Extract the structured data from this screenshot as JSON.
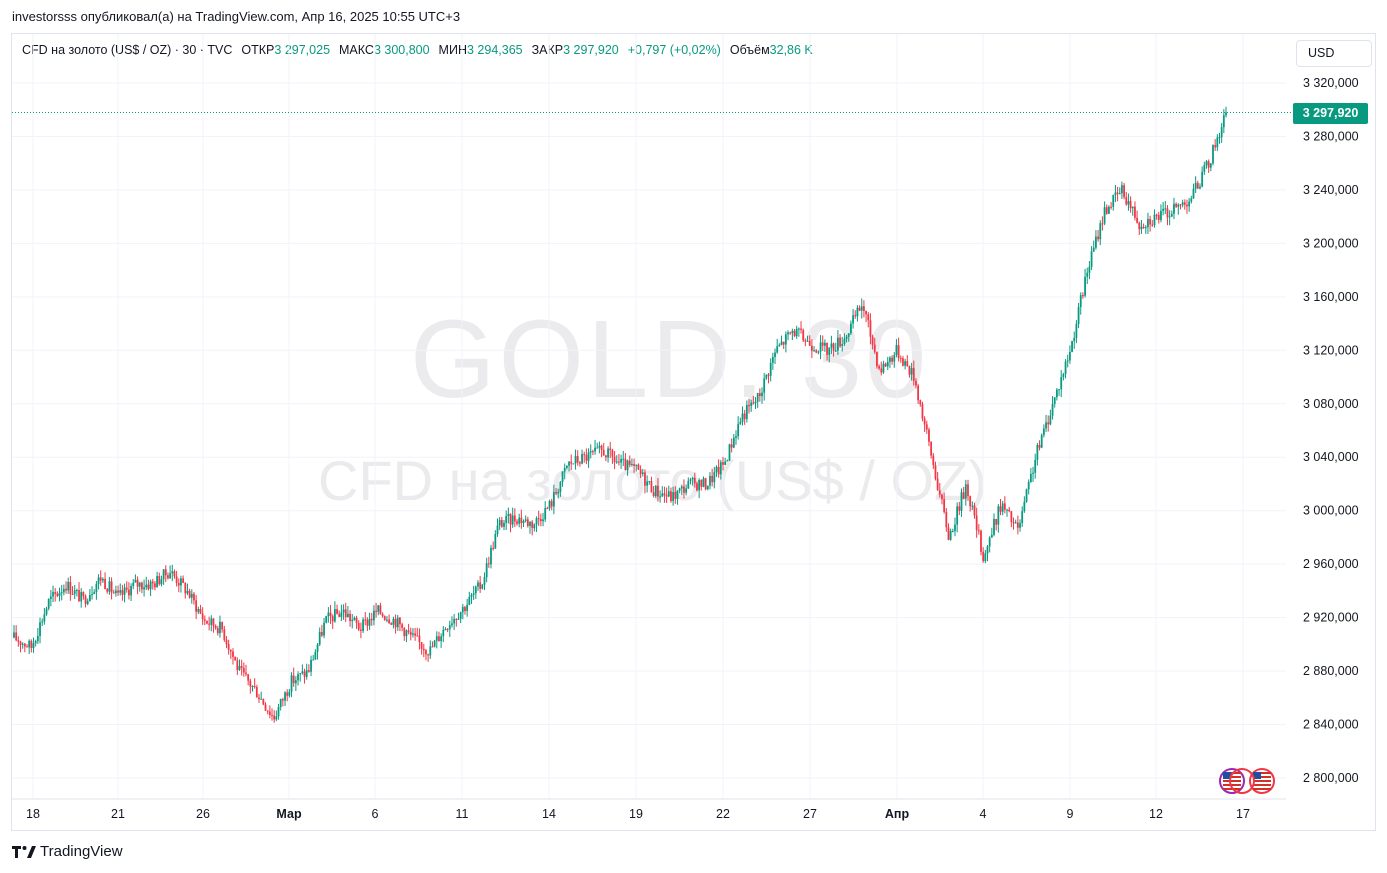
{
  "header": {
    "published_line": "investorsss опубликовал(а) на TradingView.com, Апр 16, 2025 10:55 UTC+3"
  },
  "symbol": {
    "name": "CFD на золото (US$ / OZ) · 30 · TVC",
    "open_label": "ОТКР",
    "open_value": "3 297,025",
    "high_label": "МАКС",
    "high_value": "3 300,800",
    "low_label": "МИН",
    "low_value": "3 294,365",
    "close_label": "ЗАКР",
    "close_value": "3 297,920",
    "change": "+0,797 (+0,02%)",
    "volume_label": "Объём",
    "volume_value": "32,86 K"
  },
  "currency_button": "USD",
  "watermark": {
    "ticker": "GOLD, 30",
    "description": "CFD на золото (US$ / OZ)"
  },
  "last_price_label": "3 297,920",
  "footer": {
    "brand": "TradingView"
  },
  "colors": {
    "up": "#089981",
    "down": "#f23645",
    "grid": "#f0f3fa",
    "axis_text": "#131722",
    "price_line": "#089981"
  },
  "chart_data": {
    "type": "candlestick",
    "interval": "30",
    "ylim": [
      2790,
      3340
    ],
    "yticks": [
      2800,
      2840,
      2880,
      2920,
      2960,
      3000,
      3040,
      3080,
      3120,
      3160,
      3200,
      3240,
      3280,
      3320
    ],
    "ytick_labels": [
      "2 800,000",
      "2 840,000",
      "2 880,000",
      "2 920,000",
      "2 960,000",
      "3 000,000",
      "3 040,000",
      "3 080,000",
      "3 120,000",
      "3 160,000",
      "3 200,000",
      "3 240,000",
      "3 280,000",
      "3 320,000"
    ],
    "xtick_labels": [
      "18",
      "21",
      "26",
      "Мар",
      "6",
      "11",
      "14",
      "19",
      "22",
      "27",
      "Апр",
      "4",
      "9",
      "12",
      "17"
    ],
    "last_price": 3297.92,
    "trend_points": [
      [
        0,
        2905
      ],
      [
        1,
        2898
      ],
      [
        2,
        2932
      ],
      [
        3,
        2945
      ],
      [
        4,
        2933
      ],
      [
        5,
        2950
      ],
      [
        6,
        2935
      ],
      [
        7,
        2945
      ],
      [
        8,
        2945
      ],
      [
        9,
        2955
      ],
      [
        10,
        2940
      ],
      [
        11,
        2918
      ],
      [
        12,
        2912
      ],
      [
        13,
        2880
      ],
      [
        14,
        2865
      ],
      [
        15,
        2845
      ],
      [
        16,
        2872
      ],
      [
        17,
        2880
      ],
      [
        18,
        2918
      ],
      [
        19,
        2925
      ],
      [
        20,
        2912
      ],
      [
        21,
        2925
      ],
      [
        22,
        2918
      ],
      [
        23,
        2905
      ],
      [
        24,
        2895
      ],
      [
        25,
        2915
      ],
      [
        26,
        2928
      ],
      [
        27,
        2945
      ],
      [
        28,
        2990
      ],
      [
        29,
        2995
      ],
      [
        30,
        2990
      ],
      [
        31,
        3005
      ],
      [
        32,
        3035
      ],
      [
        33,
        3040
      ],
      [
        34,
        3045
      ],
      [
        35,
        3035
      ],
      [
        36,
        3030
      ],
      [
        37,
        3015
      ],
      [
        38,
        3010
      ],
      [
        39,
        3020
      ],
      [
        40,
        3020
      ],
      [
        41,
        3035
      ],
      [
        42,
        3070
      ],
      [
        43,
        3085
      ],
      [
        44,
        3120
      ],
      [
        45,
        3135
      ],
      [
        46,
        3125
      ],
      [
        47,
        3120
      ],
      [
        48,
        3130
      ],
      [
        49,
        3155
      ],
      [
        50,
        3105
      ],
      [
        51,
        3120
      ],
      [
        52,
        3100
      ],
      [
        53,
        3040
      ],
      [
        54,
        2980
      ],
      [
        55,
        3020
      ],
      [
        56,
        2965
      ],
      [
        57,
        3005
      ],
      [
        58,
        2985
      ],
      [
        59,
        3040
      ],
      [
        60,
        3080
      ],
      [
        61,
        3120
      ],
      [
        62,
        3180
      ],
      [
        63,
        3225
      ],
      [
        64,
        3240
      ],
      [
        65,
        3215
      ],
      [
        66,
        3220
      ],
      [
        67,
        3225
      ],
      [
        68,
        3235
      ],
      [
        69,
        3260
      ],
      [
        70,
        3298
      ]
    ]
  }
}
